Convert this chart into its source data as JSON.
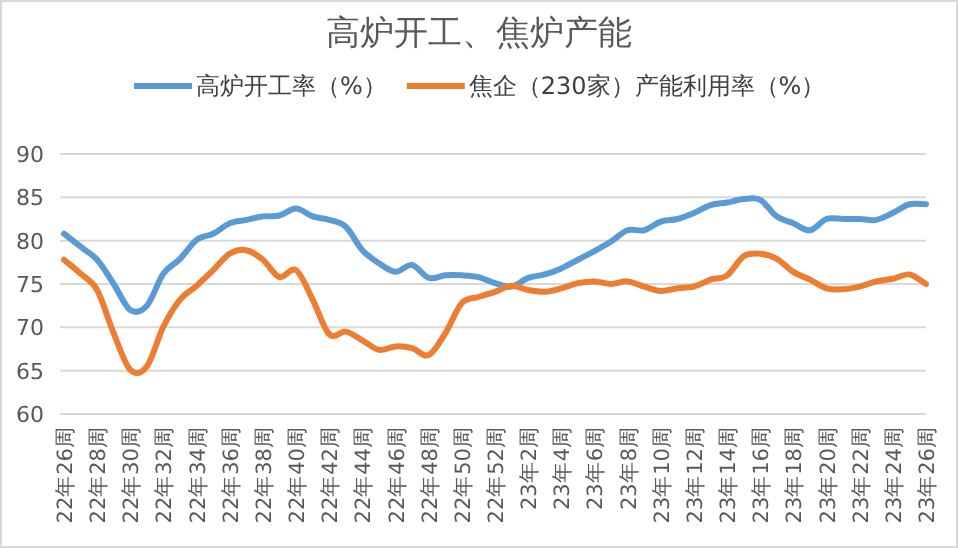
{
  "chart_data": {
    "type": "line",
    "title": "高炉开工、焦炉产能",
    "categories": [
      "22年26周",
      null,
      "22年28周",
      null,
      "22年30周",
      null,
      "22年32周",
      null,
      "22年34周",
      null,
      "22年36周",
      null,
      "22年38周",
      null,
      "22年40周",
      null,
      "22年42周",
      null,
      "22年44周",
      null,
      "22年46周",
      null,
      "22年48周",
      null,
      "22年50周",
      null,
      "22年52周",
      null,
      "23年2周",
      null,
      "23年4周",
      null,
      "23年6周",
      null,
      "23年8周",
      null,
      "23年10周",
      null,
      "23年12周",
      null,
      "23年14周",
      null,
      "23年16周",
      null,
      "23年18周",
      null,
      "23年20周",
      null,
      "23年22周",
      null,
      "23年24周",
      null,
      "23年26周"
    ],
    "series": [
      {
        "name": "高炉开工率（%）",
        "color": "#5b9bd5",
        "values": [
          80.8,
          79.3,
          77.8,
          75,
          72.0,
          72.5,
          76.2,
          77.9,
          80.1,
          80.8,
          82.0,
          82.4,
          82.8,
          82.9,
          83.7,
          82.8,
          82.4,
          81.6,
          78.9,
          77.4,
          76.4,
          77.2,
          75.7,
          76.0,
          76.0,
          75.8,
          75.1,
          74.7,
          75.7,
          76.1,
          76.8,
          77.8,
          78.8,
          79.9,
          81.2,
          81.2,
          82.2,
          82.5,
          83.2,
          84.1,
          84.4,
          84.8,
          84.7,
          82.8,
          82.0,
          81.2,
          82.5,
          82.5,
          82.5,
          82.4,
          83.2,
          84.2,
          84.2
        ]
      },
      {
        "name": "焦企（230家）产能利用率（%）",
        "color": "#ed7d31",
        "values": [
          77.8,
          76.2,
          74.3,
          69.3,
          65.1,
          65.5,
          70.1,
          73.2,
          74.8,
          76.6,
          78.5,
          78.9,
          77.8,
          75.8,
          76.6,
          73.2,
          69.2,
          69.5,
          68.5,
          67.4,
          67.8,
          67.6,
          66.8,
          69.3,
          72.8,
          73.5,
          74.1,
          74.8,
          74.3,
          74.1,
          74.5,
          75.1,
          75.3,
          75.0,
          75.3,
          74.7,
          74.2,
          74.5,
          74.7,
          75.5,
          76.0,
          78.2,
          78.5,
          77.9,
          76.4,
          75.5,
          74.5,
          74.4,
          74.7,
          75.3,
          75.6,
          76.1,
          75.0
        ]
      }
    ],
    "ylim": [
      60,
      90
    ],
    "yticks": [
      60,
      65,
      70,
      75,
      80,
      85,
      90
    ],
    "grid": "y",
    "legend": "top",
    "line_style": "solid",
    "marker": "none"
  }
}
